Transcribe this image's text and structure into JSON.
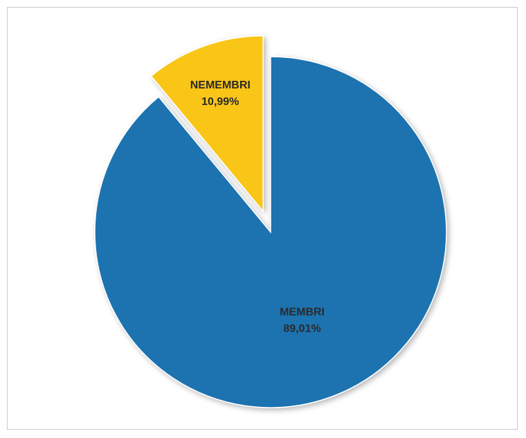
{
  "chart_data": {
    "type": "pie",
    "title": "",
    "slices": [
      {
        "label": "MEMBRI",
        "value_label": "89,01%",
        "value": 89.01,
        "color": "#1f73b0",
        "exploded": false
      },
      {
        "label": "NEMEMBRI",
        "value_label": "10,99%",
        "value": 10.99,
        "color": "#f9c516",
        "exploded": true
      }
    ],
    "legend": "none",
    "data_labels": "on-slice"
  }
}
